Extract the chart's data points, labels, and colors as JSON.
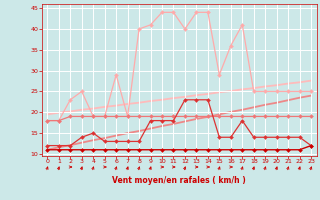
{
  "x": [
    0,
    1,
    2,
    3,
    4,
    5,
    6,
    7,
    8,
    9,
    10,
    11,
    12,
    13,
    14,
    15,
    16,
    17,
    18,
    19,
    20,
    21,
    22,
    23
  ],
  "line_bottom": [
    11,
    11,
    11,
    11,
    11,
    11,
    11,
    11,
    11,
    11,
    11,
    11,
    11,
    11,
    11,
    11,
    11,
    11,
    11,
    11,
    11,
    11,
    11,
    12
  ],
  "line_mid_flat": [
    18,
    18,
    19,
    19,
    19,
    19,
    19,
    19,
    19,
    19,
    19,
    19,
    19,
    19,
    19,
    19,
    19,
    19,
    19,
    19,
    19,
    19,
    19,
    19
  ],
  "line_rafales": [
    18,
    18,
    23,
    25,
    19,
    19,
    29,
    19,
    40,
    41,
    44,
    44,
    40,
    44,
    44,
    29,
    36,
    41,
    25,
    25,
    25,
    25,
    25,
    25
  ],
  "line_jagged": [
    12,
    12,
    12,
    14,
    15,
    13,
    13,
    13,
    13,
    18,
    18,
    18,
    23,
    23,
    23,
    14,
    14,
    18,
    14,
    14,
    14,
    14,
    14,
    12
  ],
  "trend_low": [
    11,
    11.6,
    12.1,
    12.7,
    13.3,
    13.8,
    14.4,
    15.0,
    15.5,
    16.1,
    16.7,
    17.2,
    17.8,
    18.4,
    18.9,
    19.5,
    20.1,
    20.6,
    21.2,
    21.8,
    22.3,
    22.9,
    23.5,
    24.0
  ],
  "trend_high": [
    19.5,
    19.9,
    20.2,
    20.6,
    20.9,
    21.3,
    21.6,
    22.0,
    22.3,
    22.7,
    23.0,
    23.4,
    23.7,
    24.1,
    24.4,
    24.8,
    25.1,
    25.5,
    25.8,
    26.2,
    26.5,
    26.9,
    27.2,
    27.6
  ],
  "arrows": [
    "up-right",
    "up-right",
    "right",
    "up-right",
    "up-right",
    "right",
    "up-right",
    "up-right",
    "up-right",
    "up-right",
    "right",
    "right",
    "up-right",
    "right",
    "right",
    "up-right",
    "right",
    "up-right",
    "up-right",
    "up-right",
    "up-right",
    "up-right",
    "up-right",
    "up-right"
  ],
  "background": "#cce8e8",
  "grid_color": "#ffffff",
  "color_dark_red": "#cc0000",
  "color_medium_red": "#dd3333",
  "color_light_red": "#ee7777",
  "color_very_light": "#ffaaaa",
  "color_trend_low": "#ee8888",
  "color_trend_high": "#ffbbbb",
  "xlabel": "Vent moyen/en rafales ( km/h )",
  "ylim": [
    9.5,
    46
  ],
  "xlim": [
    -0.5,
    23.5
  ],
  "yticks": [
    10,
    15,
    20,
    25,
    30,
    35,
    40,
    45
  ],
  "xticks": [
    0,
    1,
    2,
    3,
    4,
    5,
    6,
    7,
    8,
    9,
    10,
    11,
    12,
    13,
    14,
    15,
    16,
    17,
    18,
    19,
    20,
    21,
    22,
    23
  ]
}
